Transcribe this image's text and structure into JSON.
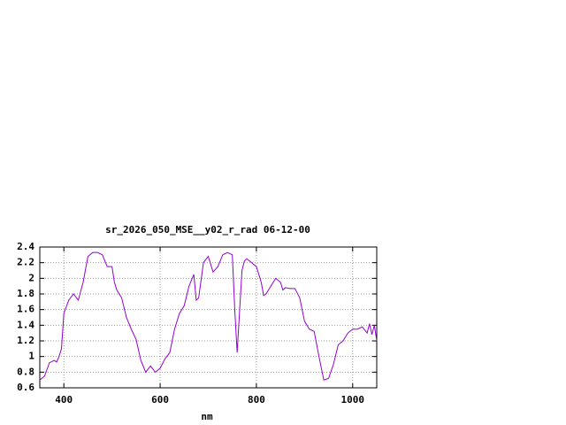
{
  "chart_data": {
    "type": "line",
    "title": "sr_2026_050_MSE__y02_r_rad 06-12-00",
    "x_label": "nm",
    "x": [
      350,
      360,
      370,
      380,
      385,
      390,
      395,
      400,
      410,
      420,
      430,
      440,
      450,
      460,
      470,
      480,
      490,
      500,
      505,
      510,
      520,
      530,
      540,
      550,
      560,
      570,
      580,
      590,
      600,
      610,
      620,
      630,
      640,
      650,
      660,
      670,
      675,
      680,
      690,
      700,
      710,
      720,
      730,
      740,
      750,
      755,
      760,
      770,
      775,
      780,
      790,
      800,
      810,
      815,
      820,
      830,
      840,
      850,
      855,
      860,
      870,
      880,
      890,
      900,
      910,
      920,
      930,
      940,
      950,
      960,
      970,
      980,
      990,
      1000,
      1010,
      1020,
      1030,
      1035,
      1040,
      1045,
      1050
    ],
    "series": [
      {
        "color": "#9400d3",
        "values": [
          0.7,
          0.75,
          0.92,
          0.95,
          0.93,
          1.0,
          1.1,
          1.55,
          1.72,
          1.8,
          1.72,
          1.95,
          2.28,
          2.33,
          2.33,
          2.3,
          2.15,
          2.15,
          1.95,
          1.85,
          1.75,
          1.5,
          1.35,
          1.22,
          0.95,
          0.8,
          0.88,
          0.8,
          0.85,
          0.97,
          1.05,
          1.35,
          1.55,
          1.65,
          1.9,
          2.05,
          1.72,
          1.75,
          2.2,
          2.28,
          2.08,
          2.15,
          2.3,
          2.33,
          2.3,
          1.6,
          1.05,
          2.1,
          2.22,
          2.25,
          2.2,
          2.15,
          1.95,
          1.78,
          1.8,
          1.9,
          2.0,
          1.95,
          1.85,
          1.88,
          1.87,
          1.87,
          1.75,
          1.45,
          1.35,
          1.32,
          1.0,
          0.7,
          0.72,
          0.9,
          1.15,
          1.2,
          1.3,
          1.35,
          1.35,
          1.38,
          1.3,
          1.42,
          1.28,
          1.4,
          1.2
        ]
      }
    ],
    "xlim": [
      350,
      1050
    ],
    "xticks": [
      400,
      600,
      800,
      1000
    ],
    "ylim": [
      0.6,
      2.4
    ],
    "yticks": [
      0.6,
      0.8,
      1,
      1.2,
      1.4,
      1.6,
      1.8,
      2,
      2.2,
      2.4
    ],
    "grid": true
  }
}
